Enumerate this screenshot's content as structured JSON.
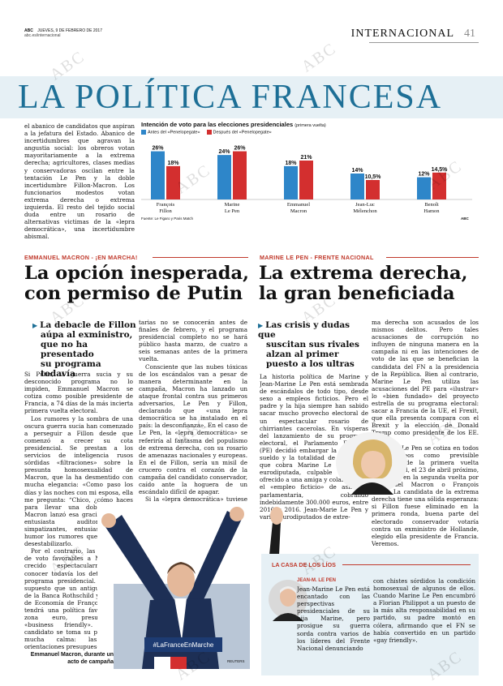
{
  "header": {
    "publication": "ABC",
    "date": "JUEVES, 9 DE FEBRERO DE 2017",
    "url": "abc.es/internacional",
    "section": "INTERNACIONAL",
    "page_number": "41"
  },
  "banner": {
    "title": "LA POLÍTICA FRANCESA"
  },
  "intro": {
    "text": "el abanico de candidatos que aspiran a la jefatura del Estado. Abanico de incertidumbres que agravan la angustia social: los obreros votan mayoritariamente a la extrema derecha; agricultores, clases medias y conservadoras oscilan entre la tentación Le Pen y la doble incertidumbre Fillon-Macron. Los funcionarios modestos votan extrema derecha o extrema izquierda. El resto del tejido social duda entre un rosario de alternativas victimas de la «lepra democrática», una incertidumbre abismal."
  },
  "chart_data": {
    "type": "bar",
    "title": "Intención de voto para las elecciones presidenciales",
    "subtitle": "(primera vuelta)",
    "categories": [
      "François Fillon",
      "Marine Le Pen",
      "Emmanuel Macron",
      "Jean-Luc Mélenchon",
      "Benoît Hamon"
    ],
    "category_lines": [
      [
        "François",
        "Fillon"
      ],
      [
        "Marine",
        "Le Pen"
      ],
      [
        "Emmanuel",
        "Macron"
      ],
      [
        "Jean-Luc",
        "Mélenchon"
      ],
      [
        "Benoît",
        "Hamon"
      ]
    ],
    "series": [
      {
        "name": "Antes del «Penelopegate»",
        "color": "#2e86c9",
        "values": [
          26,
          24,
          18,
          14,
          12
        ],
        "labels": [
          "26%",
          "24%",
          "18%",
          "14%",
          "12%"
        ]
      },
      {
        "name": "Después del «Penelopegate»",
        "color": "#d32f2f",
        "values": [
          18,
          26,
          21,
          10.5,
          14.5
        ],
        "labels": [
          "18%",
          "26%",
          "21%",
          "10,5%",
          "14,5%"
        ]
      }
    ],
    "ylim": [
      0,
      28
    ],
    "source": "Fuente: Le Figaro y Paris Match",
    "credit": "ABC"
  },
  "macron": {
    "kicker": "EMMANUEL MACRON - ¡EN MARCHA!",
    "headline": [
      "La opción inesperada,",
      "con permiso de Putin"
    ],
    "subhead": [
      "La debacle de Fillon",
      "aúpa al exministro,",
      "que no ha presentado",
      "su programa todavía"
    ],
    "col1": [
      "Si Putin, la guerra sucia y su desconocido programa no lo impiden, Emmanuel Macron se cotiza como posible presidente de Francia, a 74 días de la más incierta primera vuelta electoral.",
      "Los rumores y la sombra de una oscura guerra sucia han comenzado a perseguir a Fillon desde que comenzó a crecer su cota presidencial. Se prestan a los servicios de inteligencia rusos sórdidas «filtraciones» sobre la presunta homosexualidad de Macron, que la ha desmentido con mucha elegancia: «Como paso los días y las noches con mi esposa, ella me pregunta: “Chico, ¿cómo haces para llevar una doble vida?”». Macron lanzó esa gracieta ante un entusiasta auditorio de simpatizantes, entusiasmado con humor los rumores que pretendían desestabilizarlo.",
      "Por el contrario, las intenciones de voto favorables a Macron han crecido espectacularmente sin conocer todavía los detalles de su programa presidencial. Se da por supuesto que un antiguo ejecutivo de la Banca Rothschild y exministro de Economía de François Hollande tendrá una política favorable a la zona euro, presumiblemente «business friendly». Pero el candidato se toma su proyecto con mucha calma: las grandes orientaciones presupues-"
    ],
    "col2": [
      "tarias no se conocerán antes de finales de febrero, y el programa presidencial completo no se hará público hasta marzo, de cuatro a seis semanas antes de la primera vuelta.",
      "Consciente que las nubes tóxicas de los escándalos van a pesar de manera determinante en la campaña, Macron ha lanzado un ataque frontal contra sus primeros adversarios, Le Pen y Fillon, declarando que «una lepra democrática se ha instalado en el país: la desconfianza». En el caso de Le Pen, la «lepra democrática» se referiría al fantasma del populismo de extrema derecha, con su rosario de amenazas nacionales y europeas. En el de Fillon, sería un misil de crucero contra el corazón de la campaña del candidato conservador, caído ante la hoguera de un escándalo difícil de apagar.",
      "Si la «lepra democrática» tuviese que iluminar el rostro de Macron, degaría al descubierto la silueta frágil de un candidato sin experiencia, sin partido, dispuesto a conquistar la presidencia de un país angustiado por la ausencia de programas concretos para afrontar sus muy diversas crisis."
    ],
    "photo_sign": "#LaFranceEnMarche",
    "caption": "Emmanuel Macron, durante un acto de campaña",
    "photo_credit": "REUTERS"
  },
  "lepen": {
    "kicker": "MARINE LE PEN - FRENTE NACIONAL",
    "headline": [
      "La extrema derecha,",
      "la gran beneficiada"
    ],
    "subhead": [
      "Las crisis y dudas que",
      "suscitan sus rivales",
      "alzan al primer",
      "puesto a los ultras"
    ],
    "col1": [
      "La historia política de Marine y Jean-Marine Le Pen está sembrada de escándalos de todo tipo, desde sexo a empleos ficticios. Pero el padre y la hija siempre han sabido sacar mucho provecho electoral de un espectacular rosario de chirriantes cacerolas. En vísperas del lanzamiento de su programa electoral, el Parlamento Europeo (PE) decidió embargar la mitad del sueldo y la totalidad de las dietas que cobra Marine Le Pen como eurodiputada, culpable de haber ofrecido a una amiga y colaboradora el «empleo ficticio» de asistente parlamentaria, cobrando indebidamente 300.000 euros, entre 2010 y 2016. Jean-Marie Le Pen y varios eurodiputados de extre-"
    ],
    "col2": [
      "ma derecha son acusados de los mismos delitos. Pero tales acusaciones de corrupción no influyen de ninguna manera en la campaña ni en las intenciones de voto de las que se benefician la candidata del FN a la presidencia de la República. Bien al contrario, Marine Le Pen utiliza las acusaciones del PE para «ilustrar» lo «bien fundado» del proyecto estrella de su programa electoral: sacar a Francia de la UE, el Frexit, que ella presenta compara con el Brexit y la elección de Donald Trump como presidente de los EE. UU.",
      "Marine Le Pen se cotiza en todos los sondeos como previsible ganadora de la primera vuelta presidencial, el 23 de abril próximo, derrotada en la segunda vuelta por Emmanuel Macron o François Fillon. La candidata de la extrema derecha tiene una sólida esperanza: si Fillon fuese eliminado en la primera ronda, buena parte del electorado conservador votaría contra un exministro de Hollande, elegido ella presidente de Francia. Veremos."
    ],
    "box": {
      "kicker": "LA CASA DE LOS LÍOS",
      "sub_kicker": "JEAN-M. LE PEN",
      "col1": "Jean-Marine Le Pen está encantado con las perspectivas presidenciales de su hija Marine, pero prosigue su guerra sorda contra varios de los líderes del Frente Nacional denunciando",
      "col2": "con chistes sórdidos la condición homosexual de algunos de ellos. Cuando Marine Le Pen encumbró a Florian Philippot a un puesto de la más alta responsabilidad en su partido, su padre montó en cólera, afirmando que el FN se había convertido en un partido «gay friendly»."
    }
  },
  "watermark": "ABC",
  "colors": {
    "accent_blue": "#1d6f96",
    "accent_red": "#c0392b",
    "banner_bg": "#e6f0f5"
  }
}
